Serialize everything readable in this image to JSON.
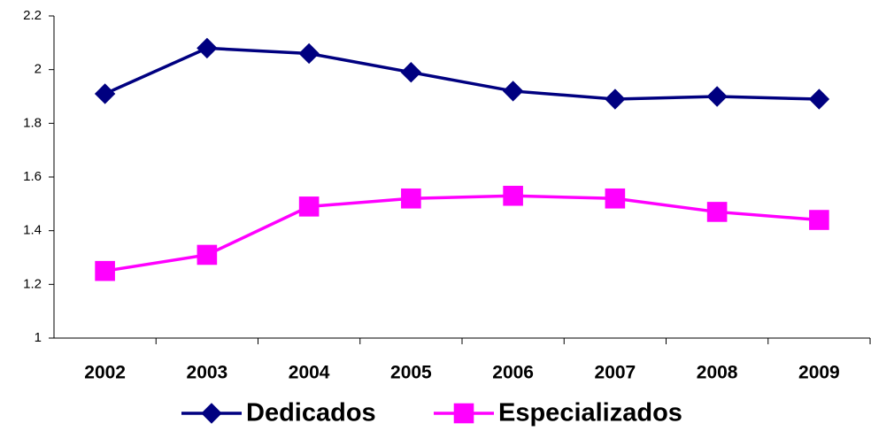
{
  "chart_data": {
    "type": "line",
    "categories": [
      "2002",
      "2003",
      "2004",
      "2005",
      "2006",
      "2007",
      "2008",
      "2009"
    ],
    "series": [
      {
        "name": "Dedicados",
        "color": "#000080",
        "marker": "diamond",
        "values": [
          1.91,
          2.08,
          2.06,
          1.99,
          1.92,
          1.89,
          1.9,
          1.89
        ]
      },
      {
        "name": "Especializados",
        "color": "#ff00ff",
        "marker": "square",
        "values": [
          1.25,
          1.31,
          1.49,
          1.52,
          1.53,
          1.52,
          1.47,
          1.44
        ]
      }
    ],
    "ylim": [
      1,
      2.2
    ],
    "yticks": [
      1,
      1.2,
      1.4,
      1.6,
      1.8,
      2,
      2.2
    ],
    "grid": false,
    "legend": "bottom"
  }
}
